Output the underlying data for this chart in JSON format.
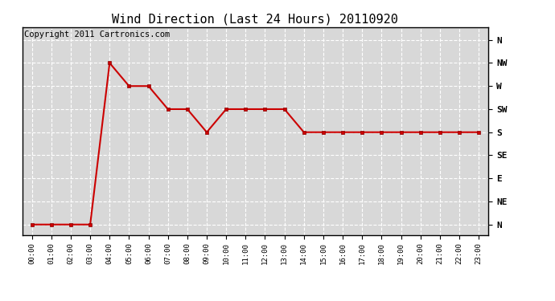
{
  "title": "Wind Direction (Last 24 Hours) 20110920",
  "copyright": "Copyright 2011 Cartronics.com",
  "x_labels": [
    "00:00",
    "01:00",
    "02:00",
    "03:00",
    "04:00",
    "05:00",
    "06:00",
    "07:00",
    "08:00",
    "09:00",
    "10:00",
    "11:00",
    "12:00",
    "13:00",
    "14:00",
    "15:00",
    "16:00",
    "17:00",
    "18:00",
    "19:00",
    "20:00",
    "21:00",
    "22:00",
    "23:00"
  ],
  "y_values": [
    0,
    0,
    0,
    0,
    315,
    270,
    270,
    225,
    225,
    180,
    225,
    225,
    225,
    225,
    180,
    180,
    180,
    180,
    180,
    180,
    180,
    180,
    180,
    180
  ],
  "y_ticks": [
    360,
    315,
    270,
    225,
    180,
    135,
    90,
    45,
    0
  ],
  "y_tick_labels": [
    "N",
    "NW",
    "W",
    "SW",
    "S",
    "SE",
    "E",
    "NE",
    "N"
  ],
  "line_color": "#cc0000",
  "marker": "s",
  "marker_size": 3,
  "bg_color": "#ffffff",
  "plot_bg_color": "#d8d8d8",
  "grid_color": "#ffffff",
  "title_fontsize": 11,
  "copyright_fontsize": 7.5
}
